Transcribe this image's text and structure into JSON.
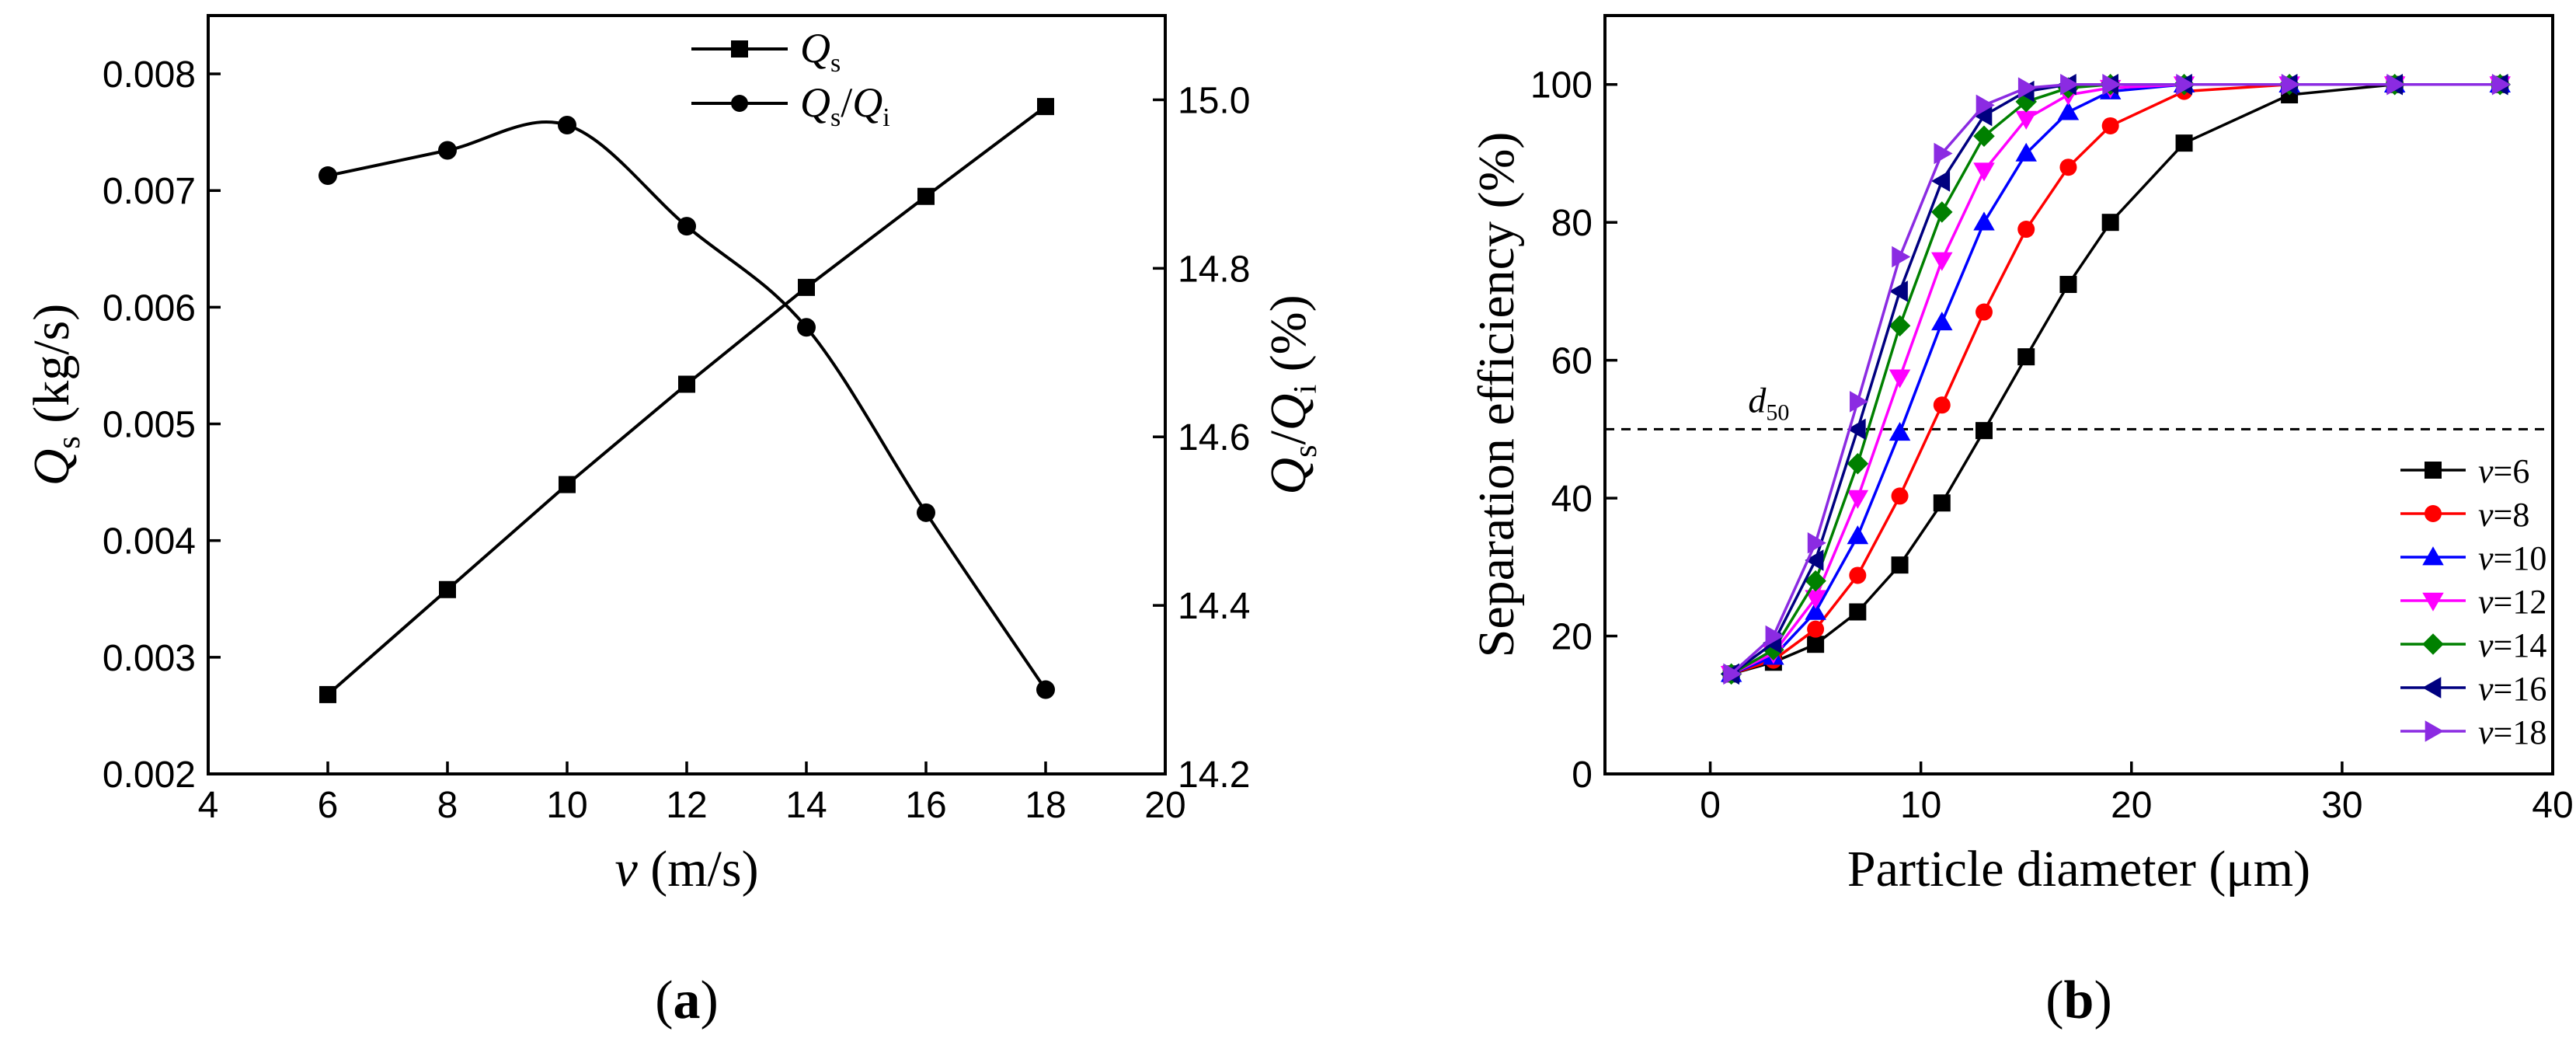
{
  "colors": {
    "v6": "#000000",
    "v8": "#ff0000",
    "v10": "#0000ff",
    "v12": "#ff00ff",
    "v14": "#008000",
    "v16": "#000080",
    "v18": "#8b2be2",
    "reference": "#000000"
  },
  "chart_data": [
    {
      "id": "a",
      "type": "line",
      "caption": "a",
      "title": "",
      "xlabel": {
        "var": "v",
        "unit": " (m/s)"
      },
      "ylabel": {
        "q": "Q",
        "sub": "s",
        "unit": " (kg/s)"
      },
      "y2label": {
        "q1": "Q",
        "sub1": "s",
        "slash": "/",
        "q2": "Q",
        "sub2": "i",
        "unit": " (%)"
      },
      "xlim": [
        4,
        20
      ],
      "ylim": [
        0.002,
        0.0085
      ],
      "y2lim": [
        14.2,
        15.1
      ],
      "xticks": [
        "4",
        "6",
        "8",
        "10",
        "12",
        "14",
        "16",
        "18",
        "20"
      ],
      "yticks": [
        "0.002",
        "0.003",
        "0.004",
        "0.005",
        "0.006",
        "0.007",
        "0.008"
      ],
      "y2ticks": [
        "14.2",
        "14.4",
        "14.6",
        "14.8",
        "15.0"
      ],
      "x": [
        6,
        8,
        10,
        12,
        14,
        16,
        18
      ],
      "series": [
        {
          "name": "Qs",
          "axis": "left",
          "marker": "square",
          "color": "#000000",
          "smooth": false,
          "values": [
            0.00268,
            0.00358,
            0.00448,
            0.00534,
            0.00617,
            0.00695,
            0.00772
          ]
        },
        {
          "name": "Qs/Qi",
          "axis": "right",
          "marker": "circle",
          "color": "#000000",
          "smooth": true,
          "values": [
            14.91,
            14.94,
            14.97,
            14.85,
            14.73,
            14.51,
            14.3
          ]
        }
      ],
      "legend": {
        "position": "top-center",
        "entries": [
          {
            "q": "Q",
            "sub": "s"
          },
          {
            "q1": "Q",
            "sub1": "s",
            "slash": "/",
            "q2": "Q",
            "sub2": "i"
          }
        ]
      }
    },
    {
      "id": "b",
      "type": "line",
      "caption": "b",
      "title": "",
      "xlabel": "Particle diameter (μm)",
      "ylabel": "Separation efficiency (%)",
      "xlim": [
        -5,
        40
      ],
      "ylim": [
        0,
        110
      ],
      "xticks": [
        "0",
        "10",
        "20",
        "30",
        "40"
      ],
      "yticks": [
        "0",
        "20",
        "40",
        "60",
        "80",
        "100"
      ],
      "reference_line": {
        "y": 50,
        "label_main": "d",
        "label_sub": "50"
      },
      "x": [
        1,
        3,
        5,
        7,
        9,
        11,
        13,
        15,
        17,
        19,
        22.5,
        27.5,
        32.5,
        37.5
      ],
      "series": [
        {
          "name": "v=6",
          "var": "v",
          "eq": "=6",
          "marker": "square",
          "color": "#000000",
          "values": [
            14.5,
            16.2,
            18.8,
            23.5,
            30.3,
            39.3,
            49.8,
            60.5,
            71,
            80,
            91.5,
            98.5,
            100,
            100
          ]
        },
        {
          "name": "v=8",
          "var": "v",
          "eq": "=8",
          "marker": "circle",
          "color": "#ff0000",
          "values": [
            14.5,
            16.5,
            21,
            28.8,
            40.3,
            53.5,
            67,
            79,
            88,
            94,
            99,
            100,
            100,
            100
          ]
        },
        {
          "name": "v=10",
          "var": "v",
          "eq": "=10",
          "marker": "triangle-up",
          "color": "#0000ff",
          "values": [
            14.5,
            17,
            23.5,
            34.5,
            49.5,
            65.5,
            80,
            90,
            96,
            99,
            100,
            100,
            100,
            100
          ]
        },
        {
          "name": "v=12",
          "var": "v",
          "eq": "=12",
          "marker": "triangle-down",
          "color": "#ff00ff",
          "values": [
            14.5,
            17.5,
            25.5,
            40,
            57.5,
            74.5,
            87.5,
            95,
            98.5,
            99.5,
            100,
            100,
            100,
            100
          ]
        },
        {
          "name": "v=14",
          "var": "v",
          "eq": "=14",
          "marker": "diamond",
          "color": "#008000",
          "values": [
            14.5,
            18,
            28,
            45,
            65,
            81.5,
            92.5,
            97.5,
            99.5,
            100,
            100,
            100,
            100,
            100
          ]
        },
        {
          "name": "v=16",
          "var": "v",
          "eq": "=16",
          "marker": "triangle-left",
          "color": "#000080",
          "values": [
            14.5,
            19,
            31,
            50,
            70,
            86,
            95.5,
            99,
            100,
            100,
            100,
            100,
            100,
            100
          ]
        },
        {
          "name": "v=18",
          "var": "v",
          "eq": "=18",
          "marker": "triangle-right",
          "color": "#8b2be2",
          "values": [
            14.5,
            20,
            33.5,
            54,
            75,
            90,
            97,
            99.5,
            100,
            100,
            100,
            100,
            100,
            100
          ]
        }
      ],
      "legend": {
        "position": "bottom-right"
      }
    }
  ]
}
